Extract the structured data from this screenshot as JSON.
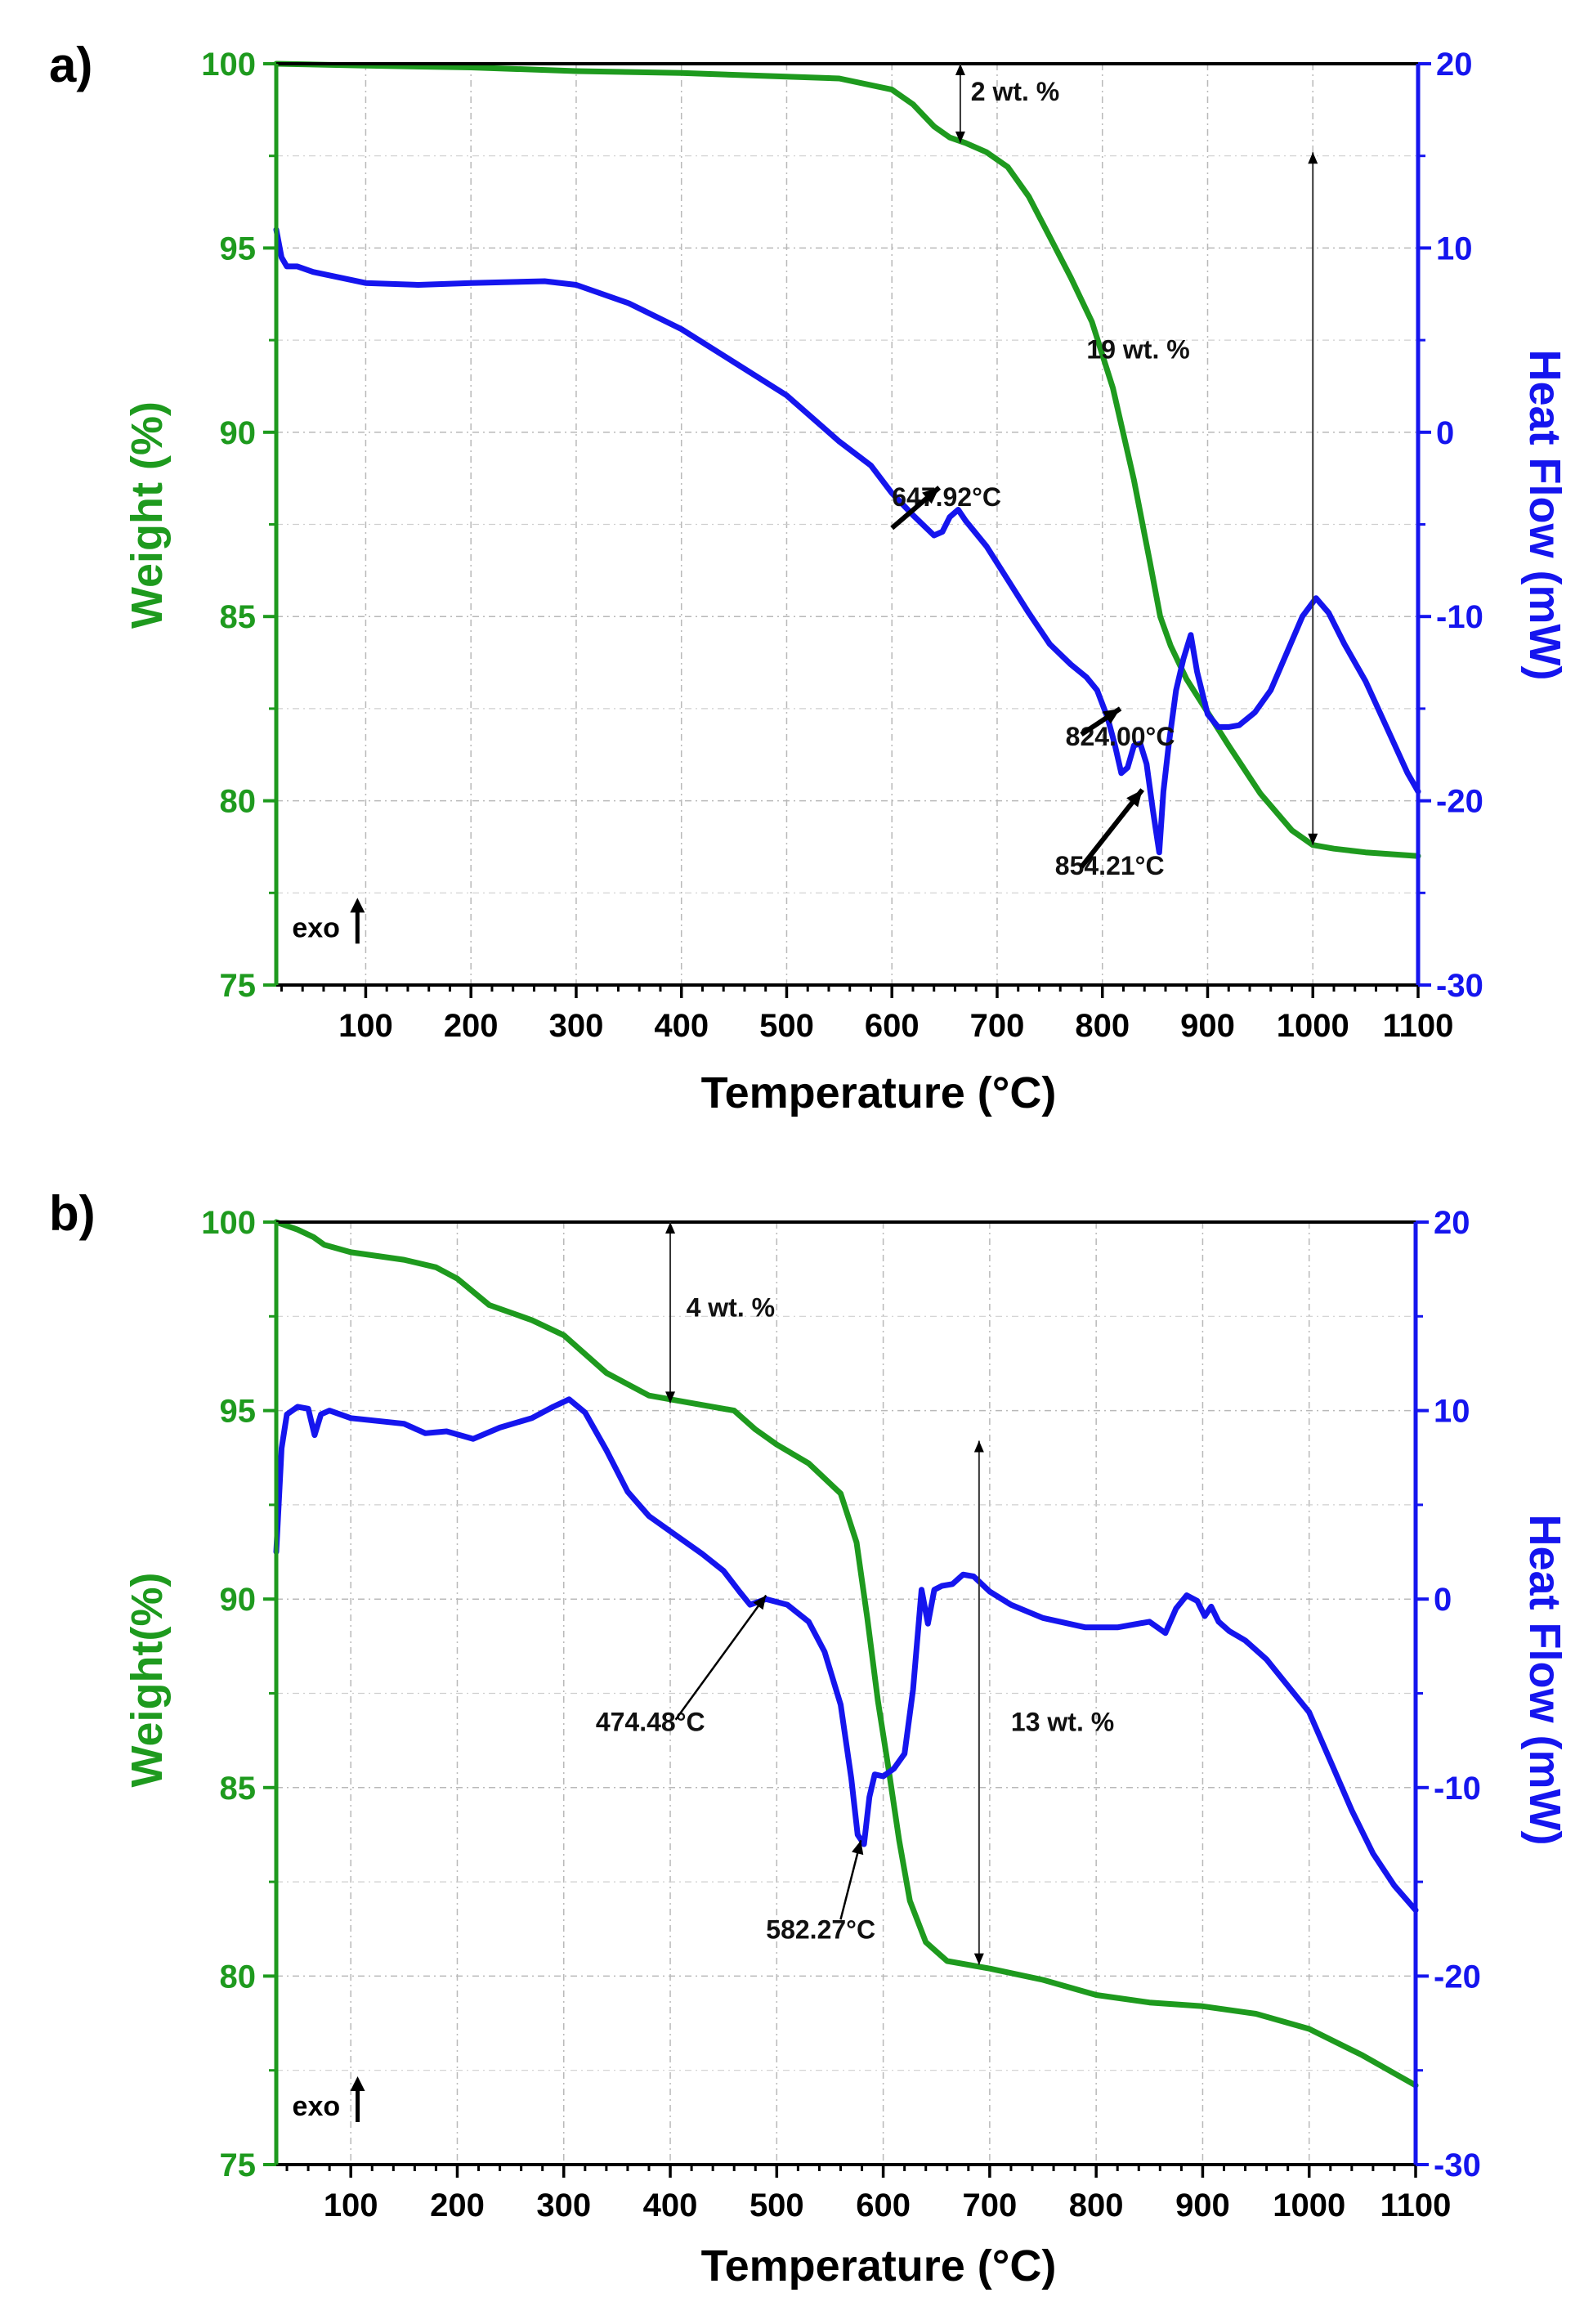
{
  "chart_data": [
    {
      "panel": "a)",
      "type": "line",
      "xlabel": "Temperature (°C)",
      "ylabel": "Weight (%)",
      "y2label": "Heat Flow (mW)",
      "xlim": [
        15,
        1100
      ],
      "ylim": [
        75,
        100
      ],
      "y2lim": [
        -30,
        20
      ],
      "xticks": [
        100,
        200,
        300,
        400,
        500,
        600,
        700,
        800,
        900,
        1000,
        1100
      ],
      "yticks": [
        75,
        80,
        85,
        90,
        95,
        100
      ],
      "y2ticks": [
        -30,
        -20,
        -10,
        0,
        10,
        20
      ],
      "grid": true,
      "colors": {
        "weight": "#1e9a1e",
        "heat": "#1515ee",
        "axis_left": "#1e9a1e",
        "axis_right": "#1515ee"
      },
      "series": [
        {
          "name": "Weight",
          "axis": "left",
          "color": "#1e9a1e",
          "x": [
            15,
            100,
            200,
            300,
            400,
            500,
            550,
            600,
            620,
            640,
            655,
            670,
            690,
            710,
            730,
            750,
            770,
            790,
            810,
            830,
            845,
            855,
            865,
            880,
            900,
            920,
            950,
            980,
            1000,
            1020,
            1050,
            1100
          ],
          "y": [
            100,
            99.95,
            99.9,
            99.8,
            99.75,
            99.65,
            99.6,
            99.3,
            98.9,
            98.3,
            98.0,
            97.85,
            97.6,
            97.2,
            96.4,
            95.3,
            94.2,
            93.0,
            91.2,
            88.7,
            86.5,
            85.0,
            84.2,
            83.3,
            82.4,
            81.5,
            80.2,
            79.2,
            78.8,
            78.7,
            78.6,
            78.5
          ]
        },
        {
          "name": "Heat Flow",
          "axis": "right",
          "color": "#1515ee",
          "x": [
            15,
            20,
            25,
            35,
            50,
            100,
            150,
            200,
            270,
            300,
            350,
            400,
            450,
            500,
            550,
            580,
            600,
            620,
            640,
            648,
            655,
            663,
            670,
            690,
            710,
            730,
            750,
            770,
            785,
            795,
            805,
            812,
            818,
            824,
            830,
            836,
            842,
            848,
            854,
            858,
            863,
            870,
            877,
            884,
            890,
            900,
            910,
            920,
            930,
            945,
            960,
            975,
            990,
            1003,
            1015,
            1030,
            1050,
            1070,
            1090,
            1100
          ],
          "y": [
            11,
            9.5,
            9,
            9,
            8.7,
            8.1,
            8.0,
            8.1,
            8.2,
            8.0,
            7.0,
            5.6,
            3.8,
            2.0,
            -0.5,
            -1.8,
            -3.3,
            -4.5,
            -5.6,
            -5.4,
            -4.6,
            -4.2,
            -4.8,
            -6.2,
            -8.0,
            -9.8,
            -11.5,
            -12.6,
            -13.3,
            -14.0,
            -15.5,
            -17.0,
            -18.5,
            -18.2,
            -17.0,
            -16.9,
            -18.0,
            -20.5,
            -22.8,
            -19.5,
            -17.0,
            -14.0,
            -12.3,
            -11.0,
            -13.0,
            -15.3,
            -16.0,
            -16.0,
            -15.9,
            -15.2,
            -14.0,
            -12.0,
            -10.0,
            -9.0,
            -9.8,
            -11.5,
            -13.5,
            -16.0,
            -18.5,
            -19.5
          ]
        }
      ],
      "annotations": [
        {
          "text": "2 wt. %",
          "x": 675,
          "y": 99.0
        },
        {
          "text": "19  wt. %",
          "x": 785,
          "y": 92.0
        },
        {
          "text": "647.92°C",
          "x": 600,
          "y": 88.0
        },
        {
          "text": "824.00°C",
          "x": 765,
          "y": 81.5
        },
        {
          "text": "854.21°C",
          "x": 755,
          "y": 78.0
        },
        {
          "text": "exo",
          "x": 30,
          "y": 76.3
        }
      ]
    },
    {
      "panel": "b)",
      "type": "line",
      "xlabel": "Temperature (°C)",
      "ylabel": "Weight(%)",
      "y2label": "Heat Flow (mW)",
      "xlim": [
        30,
        1100
      ],
      "ylim": [
        75,
        100
      ],
      "y2lim": [
        -30,
        20
      ],
      "xticks": [
        100,
        200,
        300,
        400,
        500,
        600,
        700,
        800,
        900,
        1000,
        1100
      ],
      "yticks": [
        75,
        80,
        85,
        90,
        95,
        100
      ],
      "y2ticks": [
        -30,
        -20,
        -10,
        0,
        10,
        20
      ],
      "grid": true,
      "colors": {
        "weight": "#1e9a1e",
        "heat": "#1515ee",
        "axis_left": "#1e9a1e",
        "axis_right": "#1515ee"
      },
      "series": [
        {
          "name": "Weight",
          "axis": "left",
          "color": "#1e9a1e",
          "x": [
            30,
            50,
            65,
            75,
            100,
            150,
            180,
            200,
            230,
            270,
            300,
            340,
            380,
            420,
            460,
            480,
            500,
            530,
            560,
            575,
            585,
            595,
            605,
            615,
            625,
            640,
            660,
            700,
            750,
            800,
            850,
            900,
            950,
            1000,
            1050,
            1100
          ],
          "y": [
            100,
            99.8,
            99.6,
            99.4,
            99.2,
            99.0,
            98.8,
            98.5,
            97.8,
            97.4,
            97.0,
            96.0,
            95.4,
            95.2,
            95.0,
            94.5,
            94.1,
            93.6,
            92.8,
            91.5,
            89.5,
            87.3,
            85.5,
            83.6,
            82.0,
            80.9,
            80.4,
            80.2,
            79.9,
            79.5,
            79.3,
            79.2,
            79.0,
            78.6,
            77.9,
            77.1
          ]
        },
        {
          "name": "Heat Flow",
          "axis": "right",
          "color": "#1515ee",
          "x": [
            30,
            35,
            40,
            50,
            60,
            66,
            72,
            80,
            100,
            150,
            170,
            190,
            215,
            240,
            270,
            290,
            305,
            320,
            340,
            360,
            380,
            400,
            430,
            450,
            465,
            475,
            490,
            510,
            530,
            545,
            560,
            570,
            576,
            582,
            587,
            592,
            600,
            610,
            620,
            628,
            636,
            642,
            648,
            655,
            665,
            675,
            685,
            700,
            720,
            750,
            790,
            820,
            850,
            865,
            875,
            885,
            895,
            902,
            908,
            915,
            925,
            940,
            960,
            980,
            1000,
            1020,
            1040,
            1060,
            1080,
            1100
          ],
          "y": [
            2.5,
            8.0,
            9.8,
            10.2,
            10.1,
            8.7,
            9.8,
            10.0,
            9.6,
            9.3,
            8.8,
            8.9,
            8.5,
            9.1,
            9.6,
            10.2,
            10.6,
            9.9,
            7.9,
            5.7,
            4.4,
            3.6,
            2.4,
            1.5,
            0.4,
            -0.3,
            0.0,
            -0.3,
            -1.2,
            -2.8,
            -5.6,
            -9.5,
            -12.5,
            -13.0,
            -10.5,
            -9.3,
            -9.4,
            -9.0,
            -8.2,
            -4.8,
            0.5,
            -1.3,
            0.5,
            0.7,
            0.8,
            1.3,
            1.2,
            0.4,
            -0.3,
            -1.0,
            -1.5,
            -1.5,
            -1.2,
            -1.8,
            -0.5,
            0.2,
            -0.1,
            -0.9,
            -0.4,
            -1.2,
            -1.7,
            -2.2,
            -3.2,
            -4.6,
            -6.0,
            -8.6,
            -11.2,
            -13.5,
            -15.2,
            -16.5
          ]
        }
      ],
      "annotations": [
        {
          "text": "4  wt. %",
          "x": 415,
          "y": 97.5
        },
        {
          "text": "13  wt. %",
          "x": 720,
          "y": 86.5
        },
        {
          "text": "474.48°C",
          "x": 330,
          "y": 86.5
        },
        {
          "text": "582.27°C",
          "x": 490,
          "y": 81.0
        },
        {
          "text": "exo",
          "x": 45,
          "y": 76.3
        }
      ]
    }
  ]
}
